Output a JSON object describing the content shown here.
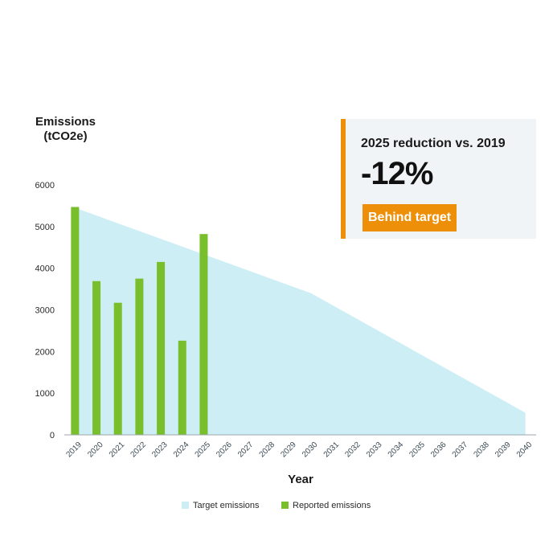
{
  "chart_data": {
    "type": "bar",
    "title": "",
    "ylabel_line1": "Emissions",
    "ylabel_line2": "(tCO2e)",
    "xlabel": "Year",
    "ylim": [
      0,
      6000
    ],
    "yticks": [
      "0",
      "1000",
      "2000",
      "3000",
      "4000",
      "5000",
      "6000"
    ],
    "categories": [
      "2019",
      "2020",
      "2021",
      "2022",
      "2023",
      "2024",
      "2025",
      "2026",
      "2027",
      "2028",
      "2029",
      "2030",
      "2031",
      "2032",
      "2033",
      "2034",
      "2035",
      "2036",
      "2037",
      "2038",
      "2039",
      "2040"
    ],
    "series": [
      {
        "name": "Target emissions",
        "type": "area",
        "color": "#cdeef4",
        "x": [
          "2019",
          "2030",
          "2040"
        ],
        "values": [
          5450,
          3400,
          530
        ]
      },
      {
        "name": "Reported emissions",
        "type": "bar",
        "color": "#78bf2b",
        "x": [
          "2019",
          "2020",
          "2021",
          "2022",
          "2023",
          "2024",
          "2025"
        ],
        "values": [
          5470,
          3690,
          3170,
          3750,
          4150,
          2260,
          4820
        ]
      }
    ],
    "legend_position": "bottom-center"
  },
  "callout": {
    "title": "2025 reduction vs. 2019",
    "value": "-12%",
    "badge": "Behind target",
    "accent_color": "#ee8f09"
  }
}
